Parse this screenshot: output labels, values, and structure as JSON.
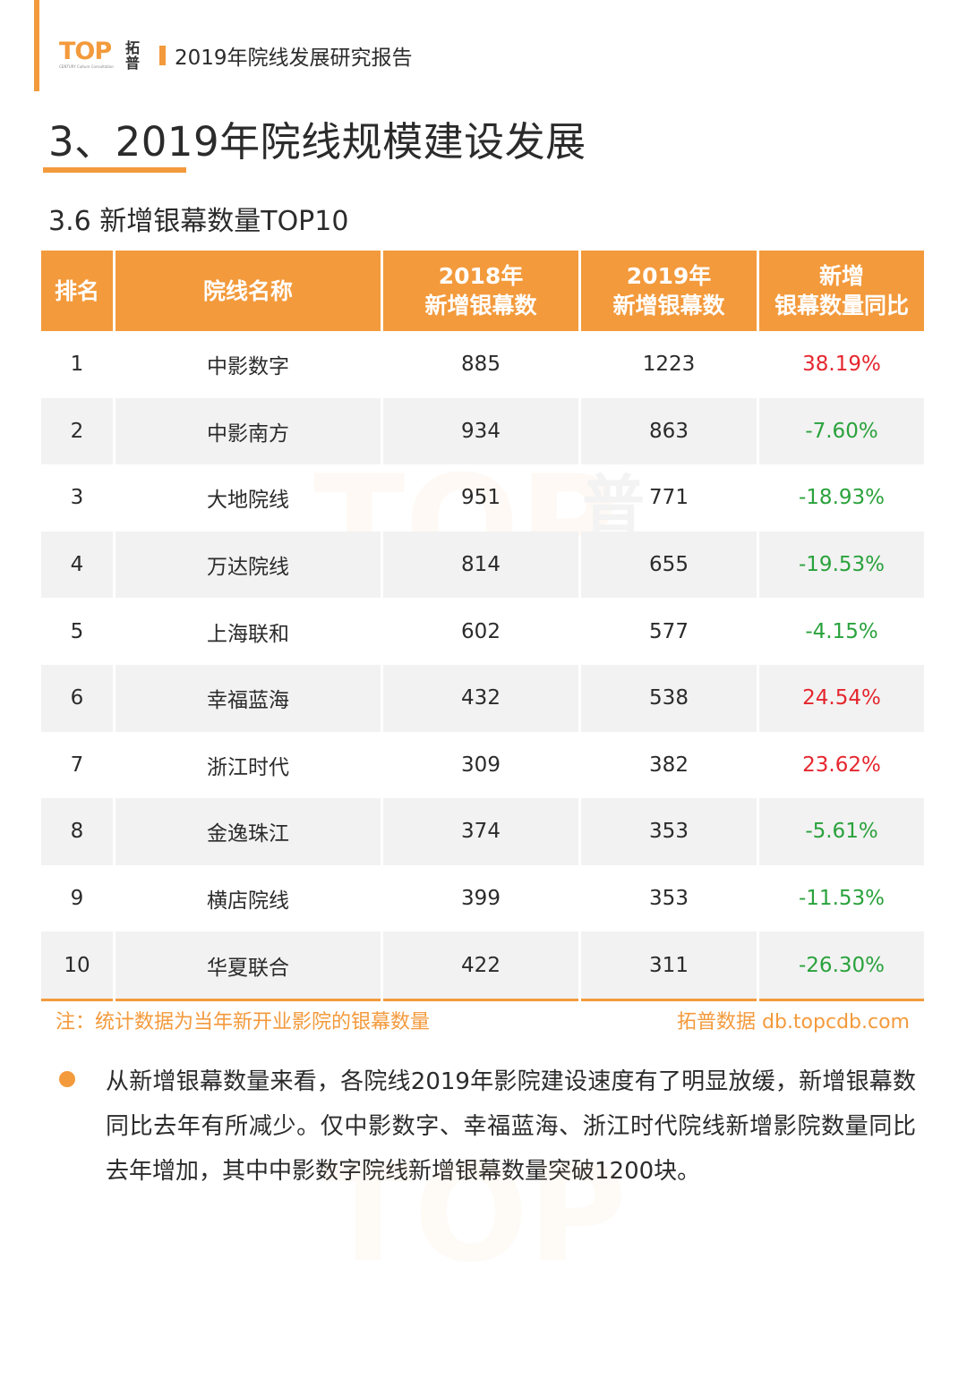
{
  "header": {
    "logo_text": "TOP",
    "logo_sub": "CENTURY Culture Consultation",
    "logo_cn_1": "拓",
    "logo_cn_2": "普",
    "report_title": "2019年院线发展研究报告"
  },
  "section_title": "3、2019年院线规模建设发展",
  "subsection_title": "3.6 新增银幕数量TOP10",
  "table": {
    "headers": [
      {
        "line1": "排名",
        "line2": ""
      },
      {
        "line1": "院线名称",
        "line2": ""
      },
      {
        "line1": "2018年",
        "line2": "新增银幕数"
      },
      {
        "line1": "2019年",
        "line2": "新增银幕数"
      },
      {
        "line1": "新增",
        "line2": "银幕数量同比"
      }
    ],
    "rows": [
      {
        "rank": "1",
        "name": "中影数字",
        "y2018": "885",
        "y2019": "1223",
        "change": "38.19%",
        "trend": "up"
      },
      {
        "rank": "2",
        "name": "中影南方",
        "y2018": "934",
        "y2019": "863",
        "change": "-7.60%",
        "trend": "down"
      },
      {
        "rank": "3",
        "name": "大地院线",
        "y2018": "951",
        "y2019": "771",
        "change": "-18.93%",
        "trend": "down"
      },
      {
        "rank": "4",
        "name": "万达院线",
        "y2018": "814",
        "y2019": "655",
        "change": "-19.53%",
        "trend": "down"
      },
      {
        "rank": "5",
        "name": "上海联和",
        "y2018": "602",
        "y2019": "577",
        "change": "-4.15%",
        "trend": "down"
      },
      {
        "rank": "6",
        "name": "幸福蓝海",
        "y2018": "432",
        "y2019": "538",
        "change": "24.54%",
        "trend": "up"
      },
      {
        "rank": "7",
        "name": "浙江时代",
        "y2018": "309",
        "y2019": "382",
        "change": "23.62%",
        "trend": "up"
      },
      {
        "rank": "8",
        "name": "金逸珠江",
        "y2018": "374",
        "y2019": "353",
        "change": "-5.61%",
        "trend": "down"
      },
      {
        "rank": "9",
        "name": "横店院线",
        "y2018": "399",
        "y2019": "353",
        "change": "-11.53%",
        "trend": "down"
      },
      {
        "rank": "10",
        "name": "华夏联合",
        "y2018": "422",
        "y2019": "311",
        "change": "-26.30%",
        "trend": "down"
      }
    ]
  },
  "footnote": "注：统计数据为当年新开业影院的银幕数量",
  "source": "拓普数据  db.topcdb.com",
  "bullet_text": "从新增银幕数量来看，各院线2019年影院建设速度有了明显放缓，新增银幕数同比去年有所减少。仅中影数字、幸福蓝海、浙江时代院线新增影院数量同比去年增加，其中中影数字院线新增银幕数量突破1200块。",
  "colors": {
    "accent": "#f39a3c",
    "positive": "#e5262e",
    "negative": "#2aa23c",
    "stripe": "#f2f2f2"
  }
}
